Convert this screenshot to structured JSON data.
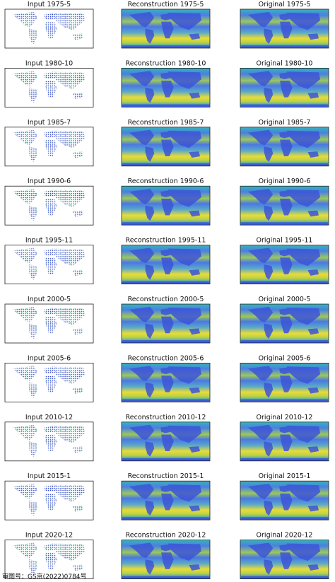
{
  "panels": [
    {
      "input": "Input 1975-5",
      "reconstruction": "Reconstruction 1975-5",
      "original": "Original 1975-5"
    },
    {
      "input": "Input 1980-10",
      "reconstruction": "Reconstruction 1980-10",
      "original": "Original 1980-10"
    },
    {
      "input": "Input 1985-7",
      "reconstruction": "Reconstruction 1985-7",
      "original": "Original 1985-7"
    },
    {
      "input": "Input 1990-6",
      "reconstruction": "Reconstruction 1990-6",
      "original": "Original 1990-6"
    },
    {
      "input": "Input 1995-11",
      "reconstruction": "Reconstruction 1995-11",
      "original": "Original 1995-11"
    },
    {
      "input": "Input 2000-5",
      "reconstruction": "Reconstruction 2000-5",
      "original": "Original 2000-5"
    },
    {
      "input": "Input 2005-6",
      "reconstruction": "Reconstruction 2005-6",
      "original": "Original 2005-6"
    },
    {
      "input": "Input 2010-12",
      "reconstruction": "Reconstruction 2010-12",
      "original": "Original 2010-12"
    },
    {
      "input": "Input 2015-1",
      "reconstruction": "Reconstruction 2015-1",
      "original": "Original 2015-1"
    },
    {
      "input": "Input 2020-12",
      "reconstruction": "Reconstruction 2020-12",
      "original": "Original 2020-12"
    }
  ],
  "footer": "审图号：GS京(2022)0784号"
}
